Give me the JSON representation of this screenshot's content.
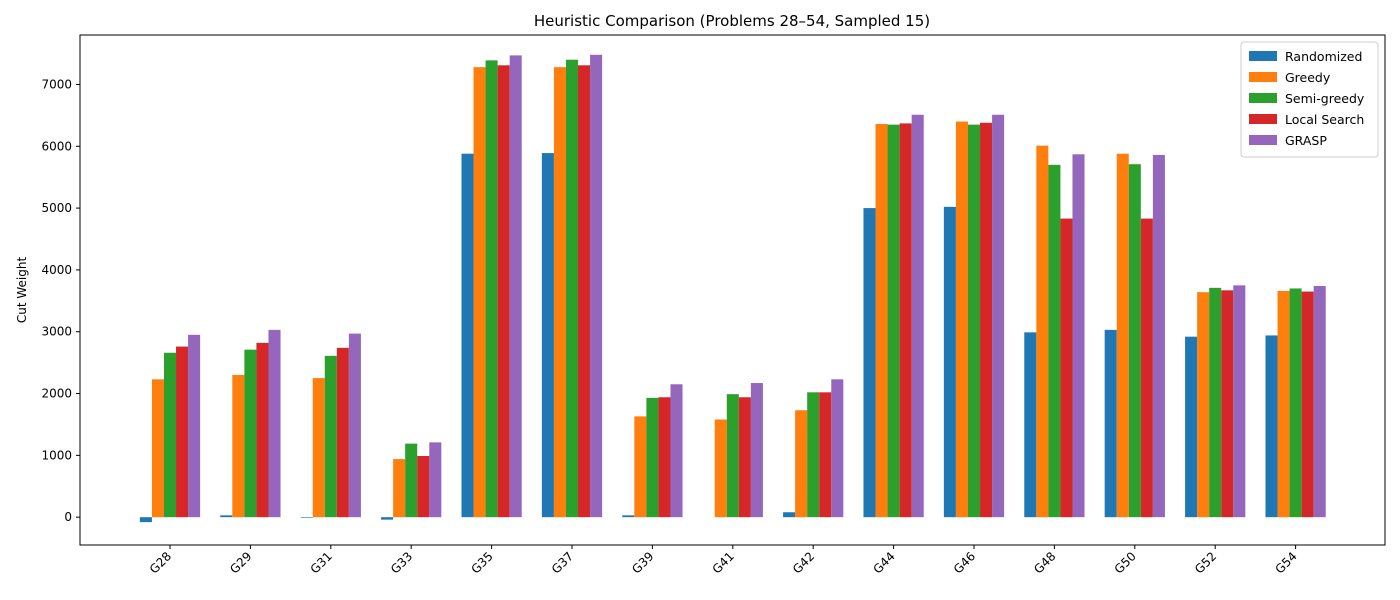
{
  "chart_data": {
    "type": "bar",
    "title": "Heuristic Comparison (Problems 28–54, Sampled 15)",
    "xlabel": "",
    "ylabel": "Cut Weight",
    "ylim": [
      -450,
      7800
    ],
    "yticks": [
      0,
      1000,
      2000,
      3000,
      4000,
      5000,
      6000,
      7000
    ],
    "legend_position": "top-right",
    "categories": [
      "G28",
      "G29",
      "G31",
      "G33",
      "G35",
      "G37",
      "G39",
      "G41",
      "G42",
      "G44",
      "G46",
      "G48",
      "G50",
      "G52",
      "G54"
    ],
    "series": [
      {
        "name": "Randomized",
        "color": "#1f77b4",
        "values": [
          -80,
          30,
          -10,
          -40,
          5880,
          5890,
          30,
          0,
          80,
          5000,
          5020,
          2990,
          3030,
          2920,
          2940
        ]
      },
      {
        "name": "Greedy",
        "color": "#ff7f0e",
        "values": [
          2230,
          2300,
          2250,
          940,
          7280,
          7280,
          1630,
          1580,
          1730,
          6360,
          6400,
          6010,
          5880,
          3640,
          3660
        ]
      },
      {
        "name": "Semi-greedy",
        "color": "#2ca02c",
        "values": [
          2660,
          2710,
          2610,
          1190,
          7390,
          7400,
          1930,
          1990,
          2020,
          6350,
          6350,
          5700,
          5710,
          3710,
          3700
        ]
      },
      {
        "name": "Local Search",
        "color": "#d62728",
        "values": [
          2760,
          2820,
          2740,
          990,
          7310,
          7310,
          1940,
          1940,
          2020,
          6370,
          6380,
          4830,
          4830,
          3670,
          3650
        ]
      },
      {
        "name": "GRASP",
        "color": "#9467bd",
        "values": [
          2950,
          3030,
          2970,
          1210,
          7470,
          7480,
          2150,
          2170,
          2230,
          6510,
          6510,
          5870,
          5860,
          3750,
          3740
        ]
      }
    ]
  }
}
